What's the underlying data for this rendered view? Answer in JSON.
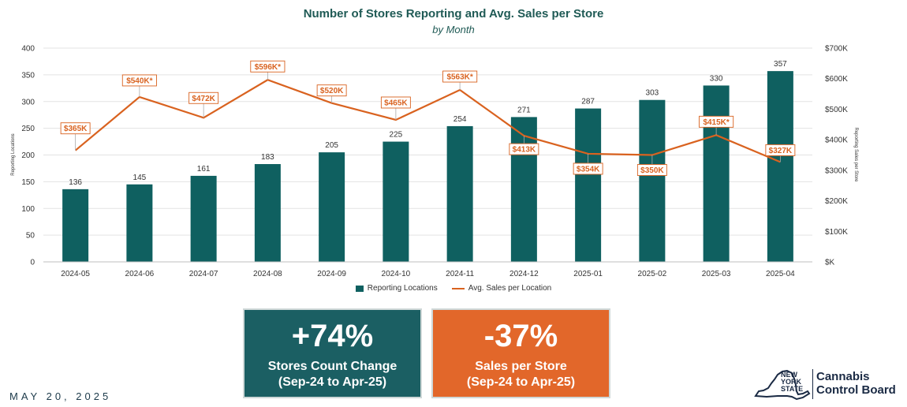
{
  "chart_data": {
    "type": "bar",
    "title": "Number of Stores Reporting and Avg. Sales per Store",
    "subtitle": "by Month",
    "ylabel": "Reporting Locations",
    "y2label": "Reporting Sales per Store",
    "ylim": [
      0,
      400
    ],
    "y2lim": [
      0,
      700
    ],
    "yticks": [
      "0",
      "50",
      "100",
      "150",
      "200",
      "250",
      "300",
      "350",
      "400"
    ],
    "y2ticks": [
      "$K",
      "$100K",
      "$200K",
      "$300K",
      "$400K",
      "$500K",
      "$600K",
      "$700K"
    ],
    "categories": [
      "2024-05",
      "2024-06",
      "2024-07",
      "2024-08",
      "2024-09",
      "2024-10",
      "2024-11",
      "2024-12",
      "2025-01",
      "2025-02",
      "2025-03",
      "2025-04"
    ],
    "series": [
      {
        "name": "Reporting Locations",
        "type": "bar",
        "axis": "left",
        "color": "#0f6060",
        "values": [
          136,
          145,
          161,
          183,
          205,
          225,
          254,
          271,
          287,
          303,
          330,
          357
        ],
        "labels": [
          "136",
          "145",
          "161",
          "183",
          "205",
          "225",
          "254",
          "271",
          "287",
          "303",
          "330",
          "357"
        ]
      },
      {
        "name": "Avg. Sales per Location",
        "type": "line",
        "axis": "right",
        "color": "#d9621f",
        "values": [
          365,
          540,
          472,
          596,
          520,
          465,
          563,
          413,
          354,
          350,
          415,
          327
        ],
        "labels": [
          "$365K",
          "$540K*",
          "$472K",
          "$596K*",
          "$520K",
          "$465K",
          "$563K*",
          "$413K",
          "$354K",
          "$350K",
          "$415K*",
          "$327K"
        ]
      }
    ],
    "legend": "bottom-center",
    "grid": true
  },
  "kpis": [
    {
      "value": "+74%",
      "label": "Stores Count Change",
      "sub": "(Sep-24 to Apr-25)",
      "color": "#1b5f63"
    },
    {
      "value": "-37%",
      "label": "Sales per Store",
      "sub": "(Sep-24 to Apr-25)",
      "color": "#e2672a"
    }
  ],
  "footer": {
    "date": "MAY 20, 2025",
    "state_line1": "NEW",
    "state_line2": "YORK",
    "state_line3": "STATE",
    "brand_line1": "Cannabis",
    "brand_line2": "Control Board"
  }
}
